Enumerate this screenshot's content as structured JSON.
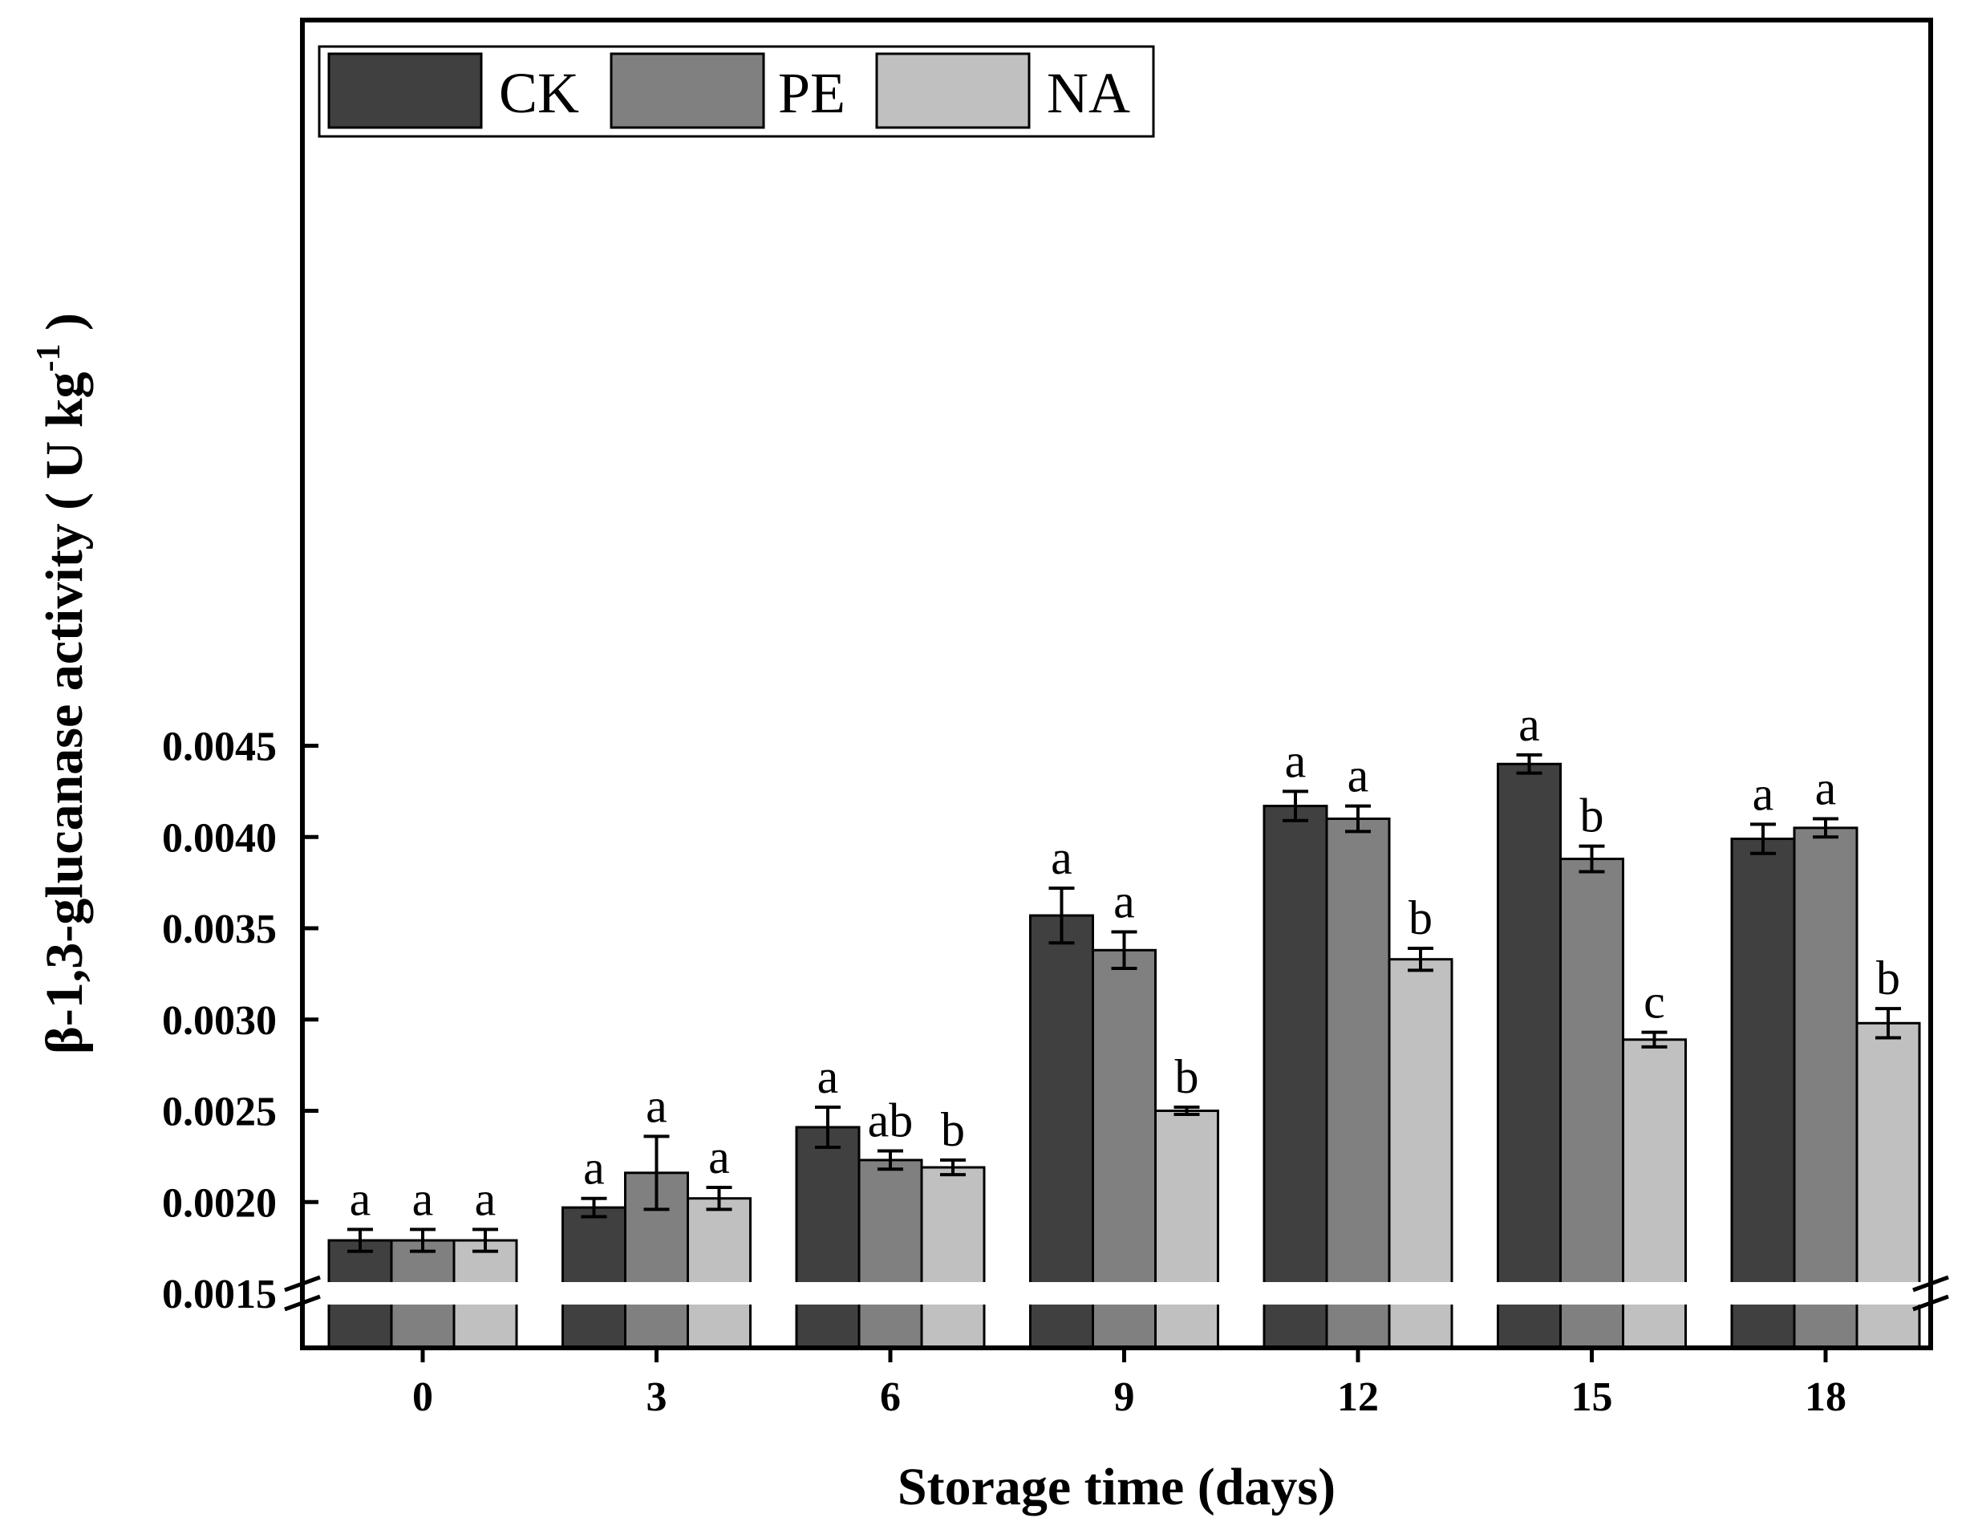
{
  "chart_data": {
    "type": "bar",
    "xlabel": "Storage time (days)",
    "ylabel_main": "β-1,3-glucanase activity ( U kg",
    "ylabel_sup": "-1",
    "ylabel_end": " )",
    "categories": [
      "0",
      "3",
      "6",
      "9",
      "12",
      "15",
      "18"
    ],
    "ylim": [
      0.0015,
      0.0049
    ],
    "y_break_below": 0.0015,
    "yticks": [
      0.0015,
      0.002,
      0.0025,
      0.003,
      0.0035,
      0.004,
      0.0045
    ],
    "ytick_labels": [
      "0.0015",
      "0.0020",
      "0.0025",
      "0.0030",
      "0.0035",
      "0.0040",
      "0.0045"
    ],
    "legend_position": "top-left",
    "grid": false,
    "series": [
      {
        "name": "CK",
        "color": "#404040",
        "values": [
          0.00179,
          0.00197,
          0.00241,
          0.00357,
          0.00417,
          0.0044,
          0.00399
        ],
        "errors": [
          6e-05,
          5e-05,
          0.00011,
          0.00015,
          8e-05,
          5e-05,
          8e-05
        ],
        "letters": [
          "a",
          "a",
          "a",
          "a",
          "a",
          "a",
          "a"
        ]
      },
      {
        "name": "PE",
        "color": "#808080",
        "values": [
          0.00179,
          0.00216,
          0.00223,
          0.00338,
          0.0041,
          0.00388,
          0.00405
        ],
        "errors": [
          6e-05,
          0.0002,
          5e-05,
          0.0001,
          7e-05,
          7e-05,
          5e-05
        ],
        "letters": [
          "a",
          "a",
          "ab",
          "a",
          "a",
          "b",
          "a"
        ]
      },
      {
        "name": "NA",
        "color": "#c0c0c0",
        "values": [
          0.00179,
          0.00202,
          0.00219,
          0.0025,
          0.00333,
          0.00289,
          0.00298
        ],
        "errors": [
          6e-05,
          6e-05,
          4e-05,
          2e-05,
          6e-05,
          4e-05,
          8e-05
        ],
        "letters": [
          "a",
          "a",
          "b",
          "b",
          "b",
          "c",
          "b"
        ]
      }
    ]
  }
}
